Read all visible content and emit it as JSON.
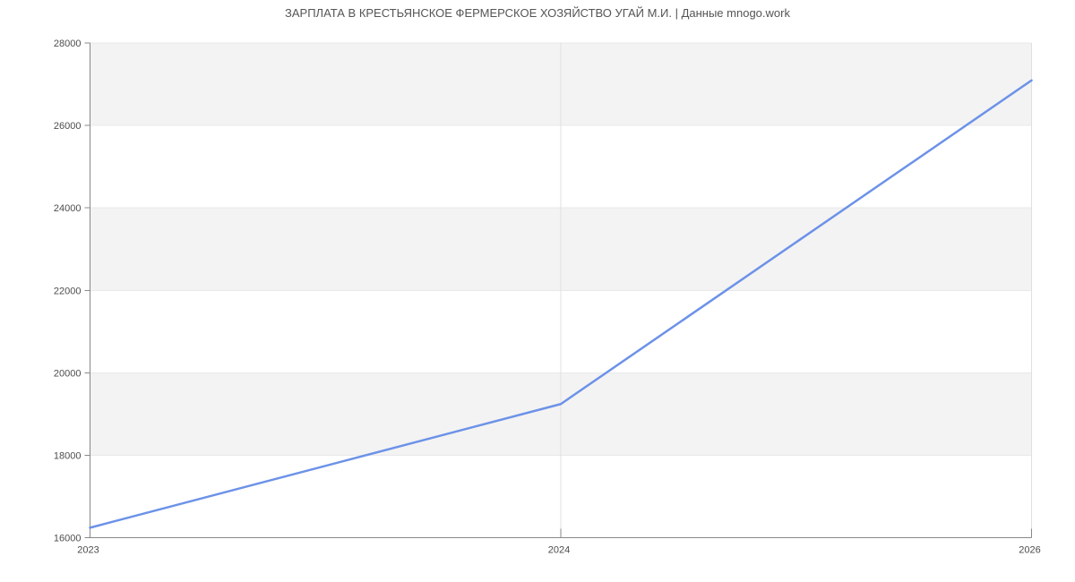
{
  "chart_data": {
    "type": "line",
    "title": "ЗАРПЛАТА В КРЕСТЬЯНСКОЕ ФЕРМЕРСКОЕ ХОЗЯЙСТВО УГАЙ М.И. | Данные mnogo.work",
    "categories": [
      "2023",
      "2024",
      "2026"
    ],
    "series": [
      {
        "values": [
          16242,
          19242,
          27093
        ]
      }
    ],
    "xlabel": "",
    "ylabel": "",
    "ylim": [
      16000,
      28000
    ],
    "y_tick_step": 2000,
    "y_tick_labels": [
      "16000",
      "18000",
      "20000",
      "22000",
      "24000",
      "26000",
      "28000"
    ],
    "x_tick_labels": [
      "2023",
      "2024",
      "2026"
    ],
    "grid": true,
    "legend_position": "none",
    "colors": {
      "line": "#6c92e8",
      "band": "#f3f3f3",
      "h_gridline": "#e9e9e9",
      "v_gridline": "#e0e0e0",
      "axis": "#888888",
      "tick": "#888888",
      "tick_label": "#4d4d4d",
      "title": "#555555",
      "background": "#ffffff"
    }
  }
}
